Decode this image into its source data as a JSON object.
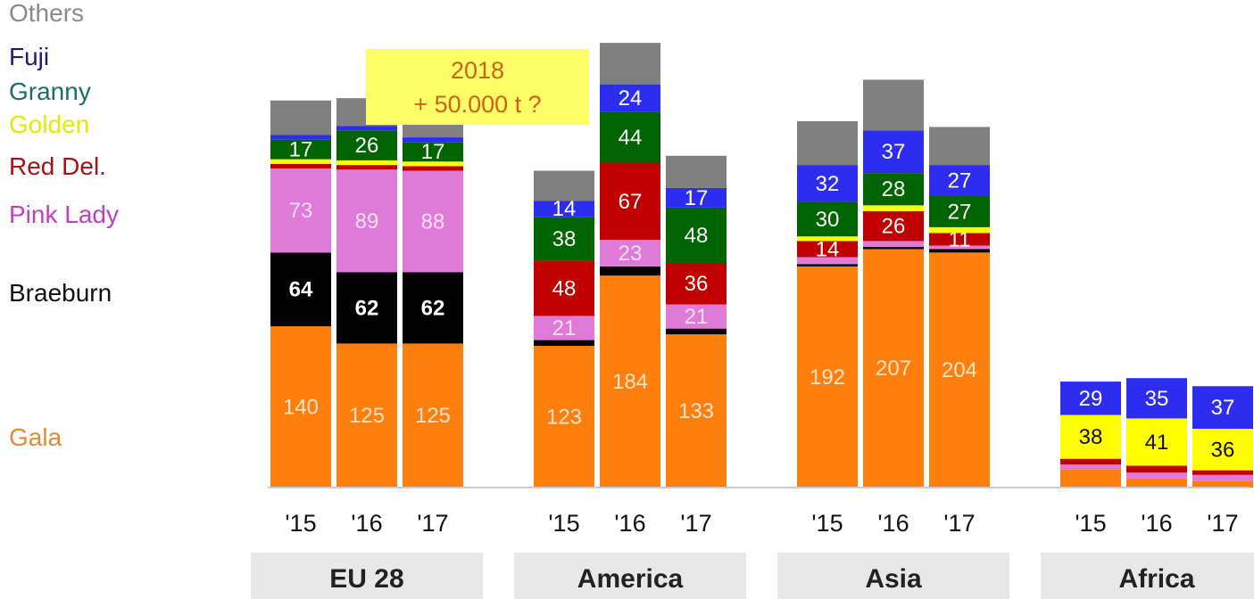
{
  "chart_data": {
    "type": "bar",
    "stacked": true,
    "ylim": [
      0,
      400
    ],
    "legend": {
      "placement": "left",
      "order": [
        "Others",
        "Fuji",
        "Granny",
        "Golden",
        "Red Del.",
        "Pink Lady",
        "Braeburn",
        "Gala"
      ]
    },
    "colors": {
      "Gala": "#ff7f0e",
      "Braeburn": "#000000",
      "Pink Lady": "#e07ad8",
      "Red Del.": "#c00000",
      "Golden": "#ffff00",
      "Granny": "#006400",
      "Fuji": "#2d2df0",
      "Others": "#808080"
    },
    "legend_text_colors": {
      "Others": "#8a8a8a",
      "Fuji": "#1a1a80",
      "Granny": "#1a6e6e",
      "Golden": "#e8e800",
      "Red Del.": "#aa1010",
      "Pink Lady": "#c040c0",
      "Braeburn": "#111111",
      "Gala": "#e08a3a"
    },
    "series_order": [
      "Gala",
      "Braeburn",
      "Pink Lady",
      "Red Del.",
      "Golden",
      "Granny",
      "Fuji",
      "Others"
    ],
    "groups": [
      {
        "name": "EU 28",
        "bars": [
          {
            "label": "'15",
            "values": {
              "Gala": 140,
              "Braeburn": 64,
              "Pink Lady": 73,
              "Red Del.": 4,
              "Golden": 4,
              "Granny": 17,
              "Fuji": 4,
              "Others": 30
            },
            "labels": {
              "Gala": "140",
              "Braeburn": "64",
              "Pink Lady": "73",
              "Granny": "17"
            }
          },
          {
            "label": "'16",
            "values": {
              "Gala": 125,
              "Braeburn": 62,
              "Pink Lady": 89,
              "Red Del.": 4,
              "Golden": 4,
              "Granny": 26,
              "Fuji": 4,
              "Others": 24
            },
            "labels": {
              "Gala": "125",
              "Braeburn": "62",
              "Pink Lady": "89",
              "Granny": "26"
            }
          },
          {
            "label": "'17",
            "values": {
              "Gala": 125,
              "Braeburn": 62,
              "Pink Lady": 88,
              "Red Del.": 4,
              "Golden": 4,
              "Granny": 17,
              "Fuji": 4,
              "Others": 14
            },
            "labels": {
              "Gala": "125",
              "Braeburn": "62",
              "Pink Lady": "88",
              "Granny": "17"
            }
          }
        ]
      },
      {
        "name": "America",
        "bars": [
          {
            "label": "'15",
            "values": {
              "Gala": 123,
              "Braeburn": 5,
              "Pink Lady": 21,
              "Red Del.": 48,
              "Golden": 0,
              "Granny": 38,
              "Fuji": 14,
              "Others": 26
            },
            "labels": {
              "Gala": "123",
              "Pink Lady": "21",
              "Red Del.": "48",
              "Granny": "38",
              "Fuji": "14"
            }
          },
          {
            "label": "'16",
            "values": {
              "Gala": 184,
              "Braeburn": 8,
              "Pink Lady": 23,
              "Red Del.": 67,
              "Golden": 0,
              "Granny": 44,
              "Fuji": 24,
              "Others": 36
            },
            "labels": {
              "Gala": "184",
              "Pink Lady": "23",
              "Red Del.": "67",
              "Granny": "44",
              "Fuji": "24"
            }
          },
          {
            "label": "'17",
            "values": {
              "Gala": 133,
              "Braeburn": 5,
              "Pink Lady": 21,
              "Red Del.": 36,
              "Golden": 0,
              "Granny": 48,
              "Fuji": 17,
              "Others": 28
            },
            "labels": {
              "Gala": "133",
              "Pink Lady": "21",
              "Red Del.": "36",
              "Granny": "48",
              "Fuji": "17"
            }
          }
        ]
      },
      {
        "name": "Asia",
        "bars": [
          {
            "label": "'15",
            "values": {
              "Gala": 192,
              "Braeburn": 2,
              "Pink Lady": 6,
              "Red Del.": 14,
              "Golden": 4,
              "Granny": 30,
              "Fuji": 32,
              "Others": 38
            },
            "labels": {
              "Gala": "192",
              "Red Del.": "14",
              "Granny": "30",
              "Fuji": "32"
            }
          },
          {
            "label": "'16",
            "values": {
              "Gala": 207,
              "Braeburn": 2,
              "Pink Lady": 5,
              "Red Del.": 26,
              "Golden": 5,
              "Granny": 28,
              "Fuji": 37,
              "Others": 44
            },
            "labels": {
              "Gala": "207",
              "Red Del.": "26",
              "Granny": "28",
              "Fuji": "37"
            }
          },
          {
            "label": "'17",
            "values": {
              "Gala": 204,
              "Braeburn": 3,
              "Pink Lady": 3,
              "Red Del.": 11,
              "Golden": 5,
              "Granny": 27,
              "Fuji": 27,
              "Others": 33
            },
            "labels": {
              "Gala": "204",
              "Red Del.": "11",
              "Granny": "27",
              "Fuji": "27"
            }
          }
        ]
      },
      {
        "name": "Africa",
        "bars": [
          {
            "label": "'15",
            "values": {
              "Gala": 16,
              "Braeburn": 0,
              "Pink Lady": 4,
              "Red Del.": 5,
              "Golden": 38,
              "Granny": 0,
              "Fuji": 29,
              "Others": 0
            },
            "labels": {
              "Golden": "38",
              "Fuji": "29"
            }
          },
          {
            "label": "'16",
            "values": {
              "Gala": 8,
              "Braeburn": 0,
              "Pink Lady": 5,
              "Red Del.": 6,
              "Golden": 41,
              "Granny": 0,
              "Fuji": 35,
              "Others": 0
            },
            "labels": {
              "Golden": "41",
              "Fuji": "35"
            }
          },
          {
            "label": "'17",
            "values": {
              "Gala": 6,
              "Braeburn": 0,
              "Pink Lady": 5,
              "Red Del.": 4,
              "Golden": 36,
              "Granny": 0,
              "Fuji": 37,
              "Others": 0
            },
            "labels": {
              "Golden": "36",
              "Fuji": "37"
            }
          }
        ]
      }
    ],
    "annotation": {
      "line1": "2018",
      "line2": "+ 50.000 t ?",
      "background": "#ffff66",
      "text_color": "#d0601a"
    }
  }
}
